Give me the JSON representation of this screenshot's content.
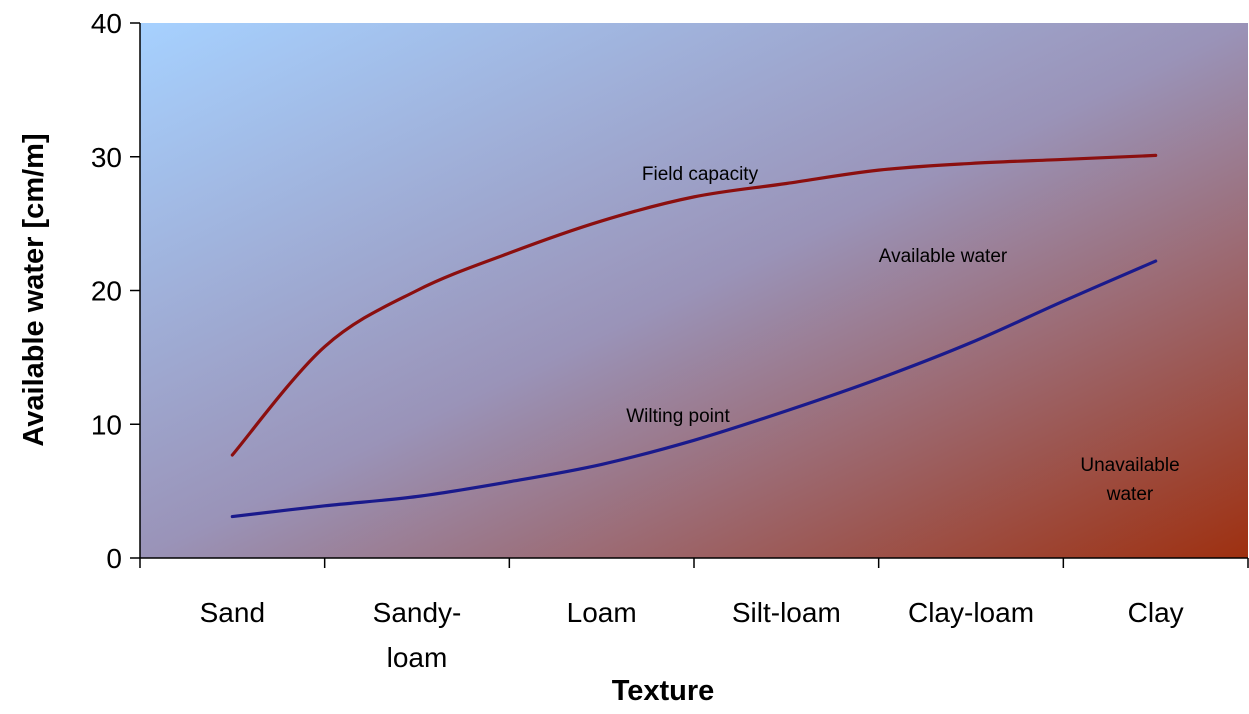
{
  "chart_data": {
    "type": "line",
    "categories": [
      "Sand",
      "Sandy-loam",
      "Loam",
      "Silt-loam",
      "Clay-loam",
      "Clay"
    ],
    "category_display_lines": [
      [
        "Sand"
      ],
      [
        "Sandy-",
        "loam"
      ],
      [
        "Loam"
      ],
      [
        "Silt-loam"
      ],
      [
        "Clay-loam"
      ],
      [
        "Clay"
      ]
    ],
    "x": [
      1,
      1.5,
      2,
      2.5,
      3,
      3.5,
      4,
      4.5,
      5,
      5.5,
      6
    ],
    "series": [
      {
        "name": "Field capacity",
        "color": "#8b0f0f",
        "values": [
          7.7,
          15.8,
          20.0,
          22.8,
          25.2,
          27.0,
          28.0,
          29.0,
          29.5,
          29.8,
          30.1
        ]
      },
      {
        "name": "Wilting point",
        "color": "#1a1a8c",
        "values": [
          3.1,
          3.9,
          4.6,
          5.7,
          7.0,
          8.8,
          11.0,
          13.4,
          16.1,
          19.2,
          22.2
        ]
      }
    ],
    "annotations": [
      "Field capacity",
      "Available water",
      "Wilting point",
      "Unavailable",
      "water"
    ],
    "xlabel": "Texture",
    "ylabel": "Available water [cm/m]",
    "yticks": [
      0,
      10,
      20,
      30,
      40
    ],
    "ylim": [
      0,
      40
    ],
    "grid": false,
    "legend": "none",
    "background_gradient": [
      "#a6d1ff",
      "#9e3010"
    ]
  }
}
